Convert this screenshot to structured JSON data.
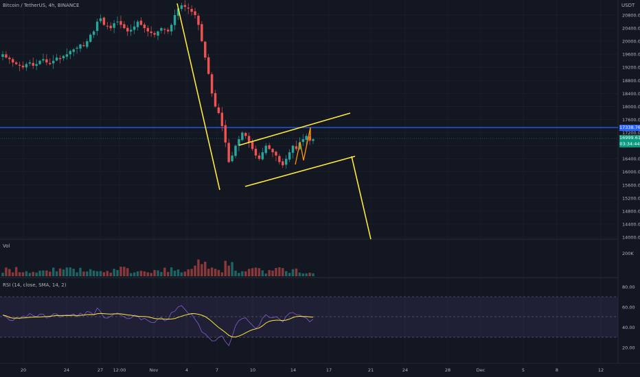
{
  "header": {
    "symbol_title": "Bitcoin / TetherUS, 4h, BINANCE",
    "currency": "USDT"
  },
  "price_axis": {
    "ticks": [
      "20800.00",
      "20400.00",
      "20000.00",
      "19600.00",
      "19200.00",
      "18800.00",
      "18400.00",
      "18000.00",
      "17600.00",
      "17200.00",
      "16800.00",
      "16400.00",
      "16000.00",
      "15600.00",
      "15200.00",
      "14800.00",
      "14400.00",
      "14000.00"
    ],
    "blue_line_price": "17338.76",
    "current_price": "16999.61",
    "countdown": "03:34:44"
  },
  "volume_pane": {
    "label": "Vol",
    "tick": "200K"
  },
  "rsi_pane": {
    "label": "RSI (14, close, SMA, 14, 2)",
    "ticks": [
      "80.00",
      "60.00",
      "40.00",
      "20.00"
    ]
  },
  "time_axis": {
    "labels": [
      "20",
      "24",
      "27",
      "12:00",
      "Nov",
      "4",
      "7",
      "10",
      "14",
      "17",
      "21",
      "24",
      "28",
      "Dec",
      "5",
      "8",
      "12"
    ]
  },
  "colors": {
    "background": "#131722",
    "up": "#26a69a",
    "down": "#ef5350",
    "trendline": "#ffeb3b",
    "horizontal_line": "#2962ff",
    "rsi_line": "#7e57c2",
    "rsi_sma": "#ffeb3b",
    "rsi_band": "#7e57c2"
  },
  "chart_data": {
    "type": "candlestick",
    "title": "Bitcoin / TetherUS, 4h, BINANCE",
    "y_unit": "USDT",
    "ylim": [
      14000,
      21000
    ],
    "closes": [
      19600,
      19500,
      19450,
      19350,
      19300,
      19250,
      19200,
      19300,
      19350,
      19250,
      19300,
      19400,
      19450,
      19350,
      19300,
      19400,
      19500,
      19450,
      19550,
      19600,
      19700,
      19750,
      19800,
      19900,
      19850,
      20000,
      20200,
      20300,
      20600,
      20700,
      20500,
      20450,
      20400,
      20550,
      20600,
      20500,
      20400,
      20300,
      20350,
      20450,
      20600,
      20500,
      20400,
      20300,
      20250,
      20200,
      20300,
      20400,
      20350,
      20300,
      20500,
      20800,
      21000,
      21100,
      21050,
      21000,
      20900,
      20800,
      20500,
      20000,
      19500,
      19000,
      18400,
      18000,
      17800,
      17400,
      16900,
      16300,
      16500,
      16800,
      17000,
      17200,
      17100,
      16900,
      16700,
      16500,
      16400,
      16600,
      16800,
      16700,
      16600,
      16500,
      16300,
      16200,
      16400,
      16600,
      16800,
      16700,
      16900,
      17000,
      17100,
      16950,
      17000
    ]
  }
}
